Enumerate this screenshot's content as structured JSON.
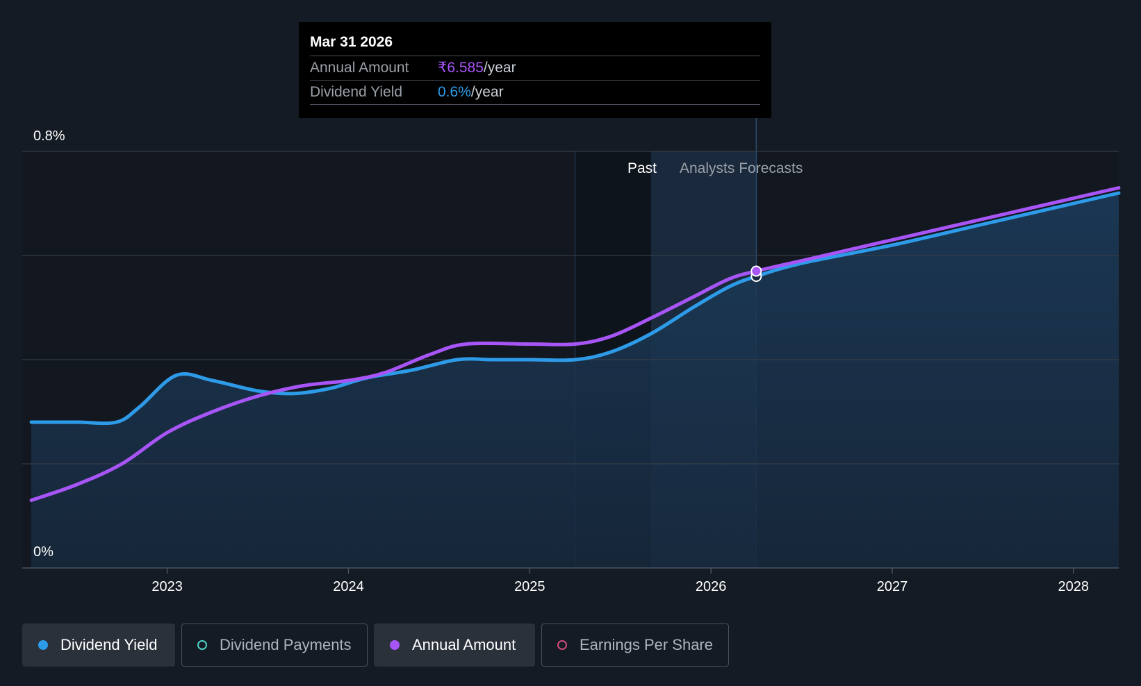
{
  "chart_data": {
    "type": "line",
    "y_axis": {
      "top_label": "0.8%",
      "bottom_label": "0%",
      "ylim": [
        0,
        0.8
      ],
      "gridlines": [
        0,
        0.2,
        0.4,
        0.6,
        0.8
      ]
    },
    "x_ticks": [
      "2023",
      "2024",
      "2025",
      "2026",
      "2027",
      "2028"
    ],
    "x_tick_values": [
      2023.0,
      2024.0,
      2025.0,
      2026.0,
      2027.0,
      2028.0
    ],
    "xlim": [
      2022.2,
      2028.25
    ],
    "region_labels": {
      "past": "Past",
      "forecast": "Analysts Forecasts"
    },
    "past_start": 2025.25,
    "past_end": 2025.67,
    "forecast_end": 2026.25,
    "series": [
      {
        "name": "Dividend Yield",
        "color": "#2e9be8",
        "points": [
          [
            2022.25,
            0.28
          ],
          [
            2022.5,
            0.28
          ],
          [
            2022.72,
            0.28
          ],
          [
            2022.85,
            0.31
          ],
          [
            2023.05,
            0.37
          ],
          [
            2023.25,
            0.36
          ],
          [
            2023.5,
            0.34
          ],
          [
            2023.7,
            0.335
          ],
          [
            2023.9,
            0.345
          ],
          [
            2024.1,
            0.365
          ],
          [
            2024.35,
            0.38
          ],
          [
            2024.6,
            0.4
          ],
          [
            2024.8,
            0.4
          ],
          [
            2025.0,
            0.4
          ],
          [
            2025.25,
            0.4
          ],
          [
            2025.45,
            0.415
          ],
          [
            2025.67,
            0.45
          ],
          [
            2025.9,
            0.5
          ],
          [
            2026.1,
            0.54
          ],
          [
            2026.25,
            0.56
          ],
          [
            2026.5,
            0.585
          ],
          [
            2027.0,
            0.62
          ],
          [
            2027.5,
            0.66
          ],
          [
            2028.0,
            0.7
          ],
          [
            2028.25,
            0.72
          ]
        ]
      },
      {
        "name": "Annual Amount",
        "color": "#a855f7",
        "points": [
          [
            2022.25,
            0.13
          ],
          [
            2022.5,
            0.16
          ],
          [
            2022.75,
            0.2
          ],
          [
            2023.0,
            0.26
          ],
          [
            2023.25,
            0.3
          ],
          [
            2023.5,
            0.33
          ],
          [
            2023.75,
            0.35
          ],
          [
            2024.0,
            0.36
          ],
          [
            2024.2,
            0.375
          ],
          [
            2024.45,
            0.41
          ],
          [
            2024.65,
            0.43
          ],
          [
            2025.0,
            0.43
          ],
          [
            2025.25,
            0.43
          ],
          [
            2025.45,
            0.445
          ],
          [
            2025.67,
            0.48
          ],
          [
            2025.9,
            0.52
          ],
          [
            2026.1,
            0.555
          ],
          [
            2026.25,
            0.57
          ],
          [
            2026.5,
            0.59
          ],
          [
            2027.0,
            0.63
          ],
          [
            2027.5,
            0.67
          ],
          [
            2028.0,
            0.71
          ],
          [
            2028.25,
            0.73
          ]
        ]
      }
    ],
    "marker_x": 2026.25
  },
  "tooltip": {
    "date": "Mar 31 2026",
    "rows": [
      {
        "label": "Annual Amount",
        "value": "₹6.585",
        "unit": "/year"
      },
      {
        "label": "Dividend Yield",
        "value": "0.6%",
        "unit": "/year"
      }
    ]
  },
  "legend": [
    {
      "label": "Dividend Yield",
      "color": "#2e9be8",
      "active": true,
      "filled": true
    },
    {
      "label": "Dividend Payments",
      "color": "#4fd1c5",
      "active": false,
      "filled": false
    },
    {
      "label": "Annual Amount",
      "color": "#a855f7",
      "active": true,
      "filled": true
    },
    {
      "label": "Earnings Per Share",
      "color": "#d04a7c",
      "active": false,
      "filled": false
    }
  ]
}
